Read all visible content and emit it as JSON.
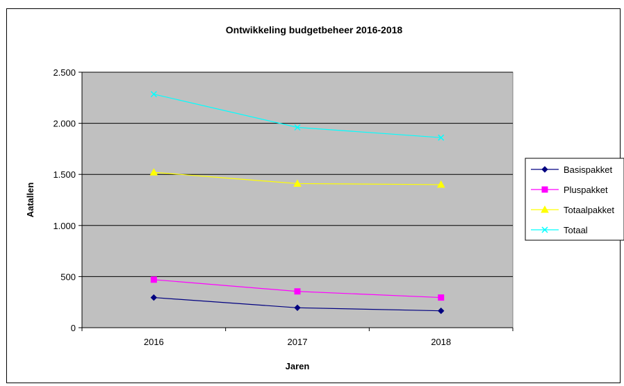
{
  "chart_data": {
    "type": "line",
    "title": "Ontwikkeling budgetbeheer 2016-2018",
    "xlabel": "Jaren",
    "ylabel": "Aatallen",
    "categories": [
      "2016",
      "2017",
      "2018"
    ],
    "ylim": [
      0,
      2500
    ],
    "yticks": [
      0,
      500,
      1000,
      1500,
      2000,
      2500
    ],
    "ytick_labels": [
      "0",
      "500",
      "1.000",
      "1.500",
      "2.000",
      "2.500"
    ],
    "grid": true,
    "plot_background": "#c0c0c0",
    "legend_position": "right",
    "series": [
      {
        "name": "Basispakket",
        "values": [
          295,
          195,
          165
        ],
        "color": "#000080",
        "marker": "diamond"
      },
      {
        "name": "Pluspakket",
        "values": [
          470,
          355,
          295
        ],
        "color": "#ff00ff",
        "marker": "square"
      },
      {
        "name": "Totaalpakket",
        "values": [
          1520,
          1410,
          1400
        ],
        "color": "#ffff00",
        "marker": "triangle"
      },
      {
        "name": "Totaal",
        "values": [
          2285,
          1960,
          1860
        ],
        "color": "#00ffff",
        "marker": "x"
      }
    ]
  }
}
